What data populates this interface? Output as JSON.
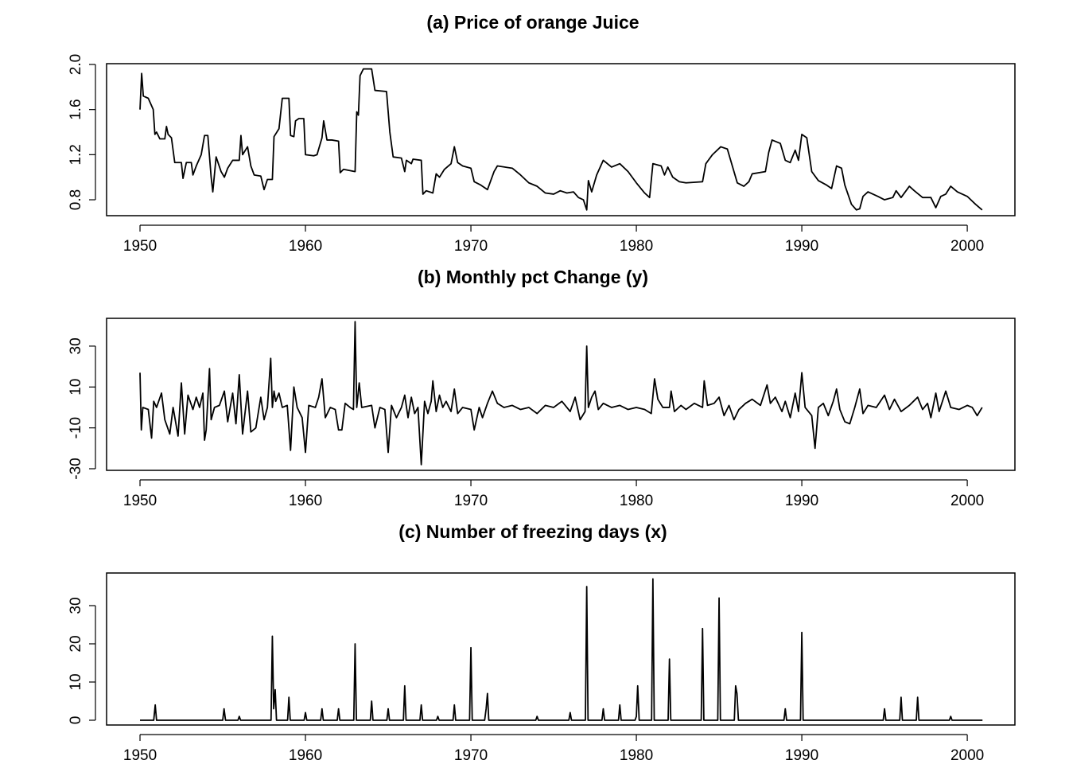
{
  "chart_data": [
    {
      "type": "line",
      "title": "(a) Price of orange Juice",
      "color": "#000000",
      "x": [
        1950.0,
        1950.1,
        1950.2,
        1950.5,
        1950.8,
        1950.9,
        1951.0,
        1951.2,
        1951.5,
        1951.6,
        1951.7,
        1951.9,
        1952.1,
        1952.5,
        1952.6,
        1952.8,
        1953.1,
        1953.2,
        1953.4,
        1953.7,
        1953.9,
        1954.1,
        1954.3,
        1954.4,
        1954.6,
        1954.9,
        1955.1,
        1955.3,
        1955.6,
        1956.0,
        1956.1,
        1956.2,
        1956.5,
        1956.7,
        1956.9,
        1957.3,
        1957.5,
        1957.7,
        1958.0,
        1958.1,
        1958.4,
        1958.6,
        1959.0,
        1959.1,
        1959.3,
        1959.4,
        1959.6,
        1959.9,
        1960.0,
        1960.5,
        1960.7,
        1961.0,
        1961.1,
        1961.3,
        1961.6,
        1962.0,
        1962.1,
        1962.3,
        1963.0,
        1963.1,
        1963.2,
        1963.3,
        1963.5,
        1964.0,
        1964.2,
        1964.9,
        1965.1,
        1965.3,
        1965.8,
        1966.0,
        1966.1,
        1966.4,
        1966.5,
        1967.0,
        1967.1,
        1967.3,
        1967.7,
        1967.9,
        1968.1,
        1968.4,
        1968.8,
        1969.0,
        1969.2,
        1969.5,
        1970.0,
        1970.2,
        1970.6,
        1971.0,
        1971.4,
        1971.6,
        1972.5,
        1973.0,
        1973.5,
        1974.0,
        1974.5,
        1975.0,
        1975.4,
        1975.8,
        1976.2,
        1976.5,
        1976.8,
        1977.0,
        1977.1,
        1977.3,
        1977.6,
        1978.0,
        1978.5,
        1979.0,
        1979.5,
        1980.0,
        1980.5,
        1980.8,
        1981.0,
        1981.5,
        1981.7,
        1981.9,
        1982.2,
        1982.6,
        1983.0,
        1984.0,
        1984.2,
        1984.6,
        1985.1,
        1985.5,
        1985.8,
        1986.1,
        1986.5,
        1986.8,
        1987.0,
        1987.8,
        1988.0,
        1988.2,
        1988.7,
        1989.0,
        1989.3,
        1989.6,
        1989.8,
        1990.0,
        1990.3,
        1990.6,
        1991.0,
        1991.5,
        1991.8,
        1992.1,
        1992.4,
        1992.6,
        1993.0,
        1993.3,
        1993.5,
        1993.7,
        1994.0,
        1994.6,
        1995.0,
        1995.5,
        1995.7,
        1996.0,
        1996.5,
        1996.8,
        1997.3,
        1997.8,
        1998.1,
        1998.4,
        1998.7,
        1999.0,
        1999.4,
        2000.0,
        2000.5,
        2000.9
      ],
      "values": [
        1.6,
        1.92,
        1.72,
        1.7,
        1.6,
        1.38,
        1.4,
        1.34,
        1.34,
        1.45,
        1.38,
        1.35,
        1.13,
        1.13,
        0.99,
        1.13,
        1.13,
        1.02,
        1.1,
        1.2,
        1.37,
        1.37,
        1.0,
        0.87,
        1.18,
        1.05,
        1.0,
        1.08,
        1.15,
        1.15,
        1.37,
        1.2,
        1.27,
        1.1,
        1.02,
        1.01,
        0.89,
        0.98,
        0.98,
        1.36,
        1.43,
        1.7,
        1.7,
        1.37,
        1.36,
        1.5,
        1.52,
        1.52,
        1.2,
        1.19,
        1.2,
        1.35,
        1.5,
        1.33,
        1.33,
        1.32,
        1.04,
        1.07,
        1.05,
        1.58,
        1.55,
        1.9,
        1.96,
        1.96,
        1.77,
        1.76,
        1.4,
        1.18,
        1.17,
        1.05,
        1.15,
        1.12,
        1.16,
        1.15,
        0.85,
        0.88,
        0.86,
        1.03,
        1.0,
        1.07,
        1.12,
        1.27,
        1.13,
        1.1,
        1.08,
        0.96,
        0.93,
        0.89,
        1.05,
        1.1,
        1.08,
        1.02,
        0.95,
        0.92,
        0.86,
        0.85,
        0.88,
        0.86,
        0.87,
        0.82,
        0.8,
        0.71,
        0.97,
        0.87,
        1.02,
        1.15,
        1.09,
        1.12,
        1.05,
        0.95,
        0.86,
        0.82,
        1.12,
        1.1,
        1.02,
        1.09,
        1.0,
        0.96,
        0.95,
        0.96,
        1.12,
        1.2,
        1.27,
        1.25,
        1.1,
        0.95,
        0.92,
        0.96,
        1.03,
        1.05,
        1.22,
        1.33,
        1.3,
        1.15,
        1.13,
        1.24,
        1.15,
        1.38,
        1.35,
        1.05,
        0.97,
        0.93,
        0.9,
        1.1,
        1.08,
        0.93,
        0.76,
        0.71,
        0.72,
        0.83,
        0.87,
        0.83,
        0.8,
        0.82,
        0.88,
        0.82,
        0.92,
        0.88,
        0.82,
        0.82,
        0.73,
        0.83,
        0.85,
        0.92,
        0.87,
        0.83,
        0.76,
        0.71
      ],
      "xlim": [
        1947.98,
        2002.88
      ],
      "ylim": [
        0.659,
        2.007
      ],
      "xticks": [
        1950,
        1960,
        1970,
        1980,
        1990,
        2000
      ],
      "yticks": [
        0.8,
        1.2,
        1.6,
        {
          "value": 2,
          "label": "2.0"
        }
      ]
    },
    {
      "type": "line",
      "title": "(b) Monthly pct Change (y)",
      "color": "#000000",
      "x": [
        1950.0,
        1950.08,
        1950.17,
        1950.5,
        1950.7,
        1950.83,
        1951.0,
        1951.3,
        1951.5,
        1951.8,
        1952.0,
        1952.3,
        1952.5,
        1952.7,
        1952.9,
        1953.2,
        1953.4,
        1953.6,
        1953.8,
        1953.9,
        1954.0,
        1954.2,
        1954.3,
        1954.5,
        1954.8,
        1955.1,
        1955.3,
        1955.6,
        1955.8,
        1956.0,
        1956.2,
        1956.5,
        1956.7,
        1957.0,
        1957.3,
        1957.5,
        1957.7,
        1957.9,
        1958.0,
        1958.1,
        1958.2,
        1958.4,
        1958.6,
        1958.9,
        1959.1,
        1959.3,
        1959.5,
        1959.8,
        1960.0,
        1960.2,
        1960.6,
        1960.8,
        1961.0,
        1961.2,
        1961.5,
        1961.8,
        1962.0,
        1962.2,
        1962.4,
        1962.7,
        1962.9,
        1963.0,
        1963.1,
        1963.25,
        1963.4,
        1964.0,
        1964.2,
        1964.5,
        1964.8,
        1965.0,
        1965.2,
        1965.5,
        1965.8,
        1966.0,
        1966.2,
        1966.4,
        1966.6,
        1966.8,
        1967.0,
        1967.2,
        1967.4,
        1967.6,
        1967.7,
        1967.9,
        1968.1,
        1968.3,
        1968.5,
        1968.8,
        1969.0,
        1969.2,
        1969.5,
        1970.0,
        1970.2,
        1970.5,
        1970.7,
        1971.0,
        1971.3,
        1971.6,
        1972.0,
        1972.5,
        1973.0,
        1973.5,
        1974.0,
        1974.5,
        1975.0,
        1975.5,
        1976.0,
        1976.3,
        1976.6,
        1976.9,
        1977.0,
        1977.1,
        1977.3,
        1977.5,
        1977.7,
        1978.0,
        1978.5,
        1979.0,
        1979.5,
        1980.0,
        1980.5,
        1980.9,
        1981.1,
        1981.3,
        1981.6,
        1982.0,
        1982.1,
        1982.3,
        1982.7,
        1983.0,
        1983.5,
        1984.0,
        1984.1,
        1984.3,
        1984.7,
        1985.0,
        1985.3,
        1985.6,
        1985.9,
        1986.2,
        1986.6,
        1987.0,
        1987.5,
        1987.9,
        1988.1,
        1988.4,
        1988.8,
        1989.0,
        1989.3,
        1989.6,
        1989.8,
        1990.0,
        1990.2,
        1990.6,
        1990.8,
        1991.0,
        1991.3,
        1991.6,
        1991.9,
        1992.1,
        1992.3,
        1992.6,
        1992.9,
        1993.2,
        1993.5,
        1993.7,
        1994.0,
        1994.5,
        1995.0,
        1995.3,
        1995.6,
        1996.0,
        1996.5,
        1997.0,
        1997.3,
        1997.6,
        1997.8,
        1998.1,
        1998.3,
        1998.7,
        1999.0,
        1999.5,
        2000.0,
        2000.3,
        2000.6,
        2000.9
      ],
      "values": [
        17,
        -11,
        0,
        -1,
        -15,
        3,
        0,
        7,
        -6,
        -13,
        0,
        -14,
        12,
        -13,
        6,
        -1,
        5,
        0,
        7,
        -16,
        -11,
        19,
        -6,
        0,
        1,
        8,
        -7,
        7,
        -8,
        16,
        -13,
        8,
        -12,
        -10,
        5,
        -6,
        0,
        24,
        0,
        8,
        3,
        7,
        0,
        1,
        -21,
        10,
        0,
        -5,
        -22,
        1,
        0,
        5,
        14,
        -5,
        0,
        -1,
        -11,
        -11,
        2,
        0,
        -1,
        42,
        0,
        12,
        0,
        1,
        -10,
        0,
        -1,
        -22,
        1,
        -5,
        0,
        6,
        -5,
        5,
        -3,
        0,
        -28,
        3,
        -3,
        3,
        13,
        -2,
        6,
        0,
        3,
        -2,
        9,
        -3,
        0,
        -1,
        -11,
        0,
        -5,
        2,
        8,
        2,
        0,
        1,
        -1,
        0,
        -3,
        1,
        0,
        3,
        -2,
        5,
        -6,
        -2,
        30,
        0,
        5,
        8,
        -1,
        2,
        0,
        1,
        -1,
        0,
        -1,
        -3,
        14,
        4,
        0,
        0,
        8,
        -2,
        1,
        -1,
        2,
        0,
        13,
        1,
        2,
        5,
        -4,
        1,
        -6,
        -1,
        2,
        4,
        1,
        11,
        2,
        5,
        -2,
        3,
        -5,
        7,
        -2,
        17,
        0,
        -4,
        -20,
        0,
        2,
        -4,
        3,
        9,
        -1,
        -7,
        -8,
        0,
        9,
        -3,
        1,
        0,
        6,
        -1,
        4,
        -2,
        1,
        5,
        -1,
        2,
        -5,
        7,
        -2,
        8,
        0,
        -1,
        1,
        0,
        -4,
        0
      ],
      "xlim": [
        1947.98,
        2002.88
      ],
      "ylim": [
        -30.78,
        43.6
      ],
      "xticks": [
        1950,
        1960,
        1970,
        1980,
        1990,
        2000
      ],
      "yticks": [
        -30,
        -10,
        10,
        30
      ]
    },
    {
      "type": "line",
      "title": "(c) Number of freezing days (x)",
      "color": "#000000",
      "x": [
        1950.0,
        1950.83,
        1950.92,
        1951.0,
        1955.0,
        1955.08,
        1955.17,
        1955.92,
        1956.0,
        1956.08,
        1957.92,
        1958.0,
        1958.08,
        1958.17,
        1958.25,
        1958.92,
        1959.0,
        1959.08,
        1959.92,
        1960.0,
        1960.08,
        1960.92,
        1961.0,
        1961.08,
        1961.92,
        1962.0,
        1962.08,
        1962.92,
        1963.0,
        1963.08,
        1963.92,
        1964.0,
        1964.08,
        1964.92,
        1965.0,
        1965.08,
        1965.92,
        1966.0,
        1966.08,
        1966.92,
        1967.0,
        1967.08,
        1967.92,
        1968.0,
        1968.08,
        1968.92,
        1969.0,
        1969.08,
        1969.92,
        1970.0,
        1970.08,
        1970.83,
        1970.92,
        1971.0,
        1971.08,
        1973.92,
        1974.0,
        1974.08,
        1975.92,
        1976.0,
        1976.08,
        1976.92,
        1977.0,
        1977.08,
        1977.92,
        1978.0,
        1978.08,
        1978.92,
        1979.0,
        1979.08,
        1979.92,
        1980.0,
        1980.08,
        1980.17,
        1980.92,
        1981.0,
        1981.08,
        1981.92,
        1982.0,
        1982.08,
        1983.92,
        1984.0,
        1984.08,
        1984.92,
        1985.0,
        1985.08,
        1985.92,
        1986.0,
        1986.08,
        1986.17,
        1988.92,
        1989.0,
        1989.08,
        1989.92,
        1990.0,
        1990.08,
        1994.92,
        1995.0,
        1995.08,
        1995.92,
        1996.0,
        1996.08,
        1996.92,
        1997.0,
        1997.08,
        1998.92,
        1999.0,
        1999.08,
        2000.92
      ],
      "values": [
        0,
        0,
        4,
        0,
        0,
        3,
        0,
        0,
        1,
        0,
        0,
        22,
        3,
        8,
        0,
        0,
        6,
        0,
        0,
        2,
        0,
        0,
        3,
        0,
        0,
        3,
        0,
        0,
        20,
        0,
        0,
        5,
        0,
        0,
        3,
        0,
        0,
        9,
        0,
        0,
        4,
        0,
        0,
        1,
        0,
        0,
        4,
        0,
        0,
        19,
        0,
        0,
        3,
        7,
        0,
        0,
        1,
        0,
        0,
        2,
        0,
        0,
        35,
        0,
        0,
        3,
        0,
        0,
        4,
        0,
        0,
        1,
        9,
        0,
        0,
        37,
        0,
        0,
        16,
        0,
        0,
        24,
        0,
        0,
        32,
        0,
        0,
        9,
        7,
        0,
        0,
        3,
        0,
        0,
        23,
        0,
        0,
        3,
        0,
        0,
        6,
        0,
        0,
        6,
        0,
        0,
        1,
        0,
        0
      ],
      "xlim": [
        1947.98,
        2002.88
      ],
      "ylim": [
        -1.25,
        38.54
      ],
      "xticks": [
        1950,
        1960,
        1970,
        1980,
        1990,
        2000
      ],
      "yticks": [
        0,
        10,
        20,
        30
      ]
    }
  ]
}
